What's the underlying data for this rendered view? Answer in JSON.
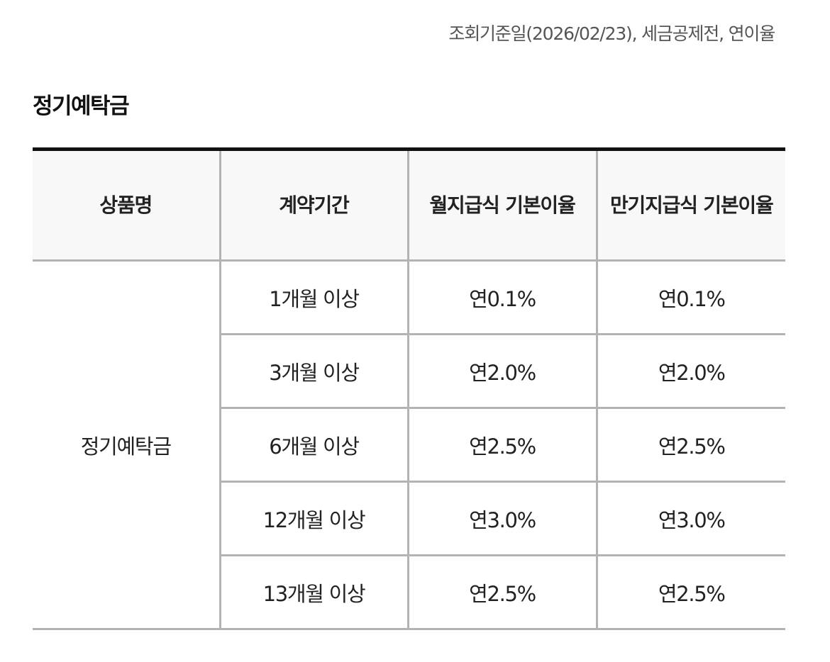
{
  "notice": "조회기준일(2026/02/23), 세금공제전, 연이율",
  "section": {
    "title": "정기예탁금"
  },
  "table": {
    "headers": {
      "product": "상품명",
      "term": "계약기간",
      "monthly": "월지급식 기본이율",
      "maturity": "만기지급식 기본이율"
    },
    "product_name": "정기예탁금",
    "rows": [
      {
        "term": "1개월 이상",
        "monthly": "연0.1%",
        "maturity": "연0.1%"
      },
      {
        "term": "3개월 이상",
        "monthly": "연2.0%",
        "maturity": "연2.0%"
      },
      {
        "term": "6개월 이상",
        "monthly": "연2.5%",
        "maturity": "연2.5%"
      },
      {
        "term": "12개월 이상",
        "monthly": "연3.0%",
        "maturity": "연3.0%"
      },
      {
        "term": "13개월 이상",
        "monthly": "연2.5%",
        "maturity": "연2.5%"
      }
    ]
  },
  "colors": {
    "header_background": "#f8f8f8",
    "top_border": "#111111",
    "grid_line": "#b3b3b3",
    "notice_text": "#555555"
  }
}
